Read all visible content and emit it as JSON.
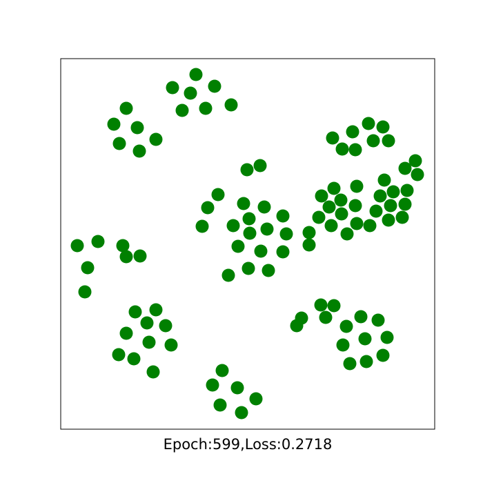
{
  "chart_data": {
    "type": "scatter",
    "xlabel": "Epoch:599,Loss:0.2718",
    "color": "#008000",
    "xlim": [
      0,
      542
    ],
    "ylim": [
      0,
      537
    ],
    "x": [
      196,
      162,
      188,
      223,
      176,
      210,
      247,
      95,
      77,
      111,
      85,
      114,
      138,
      446,
      467,
      423,
      394,
      408,
      427,
      453,
      475,
      514,
      499,
      517,
      469,
      482,
      502,
      463,
      478,
      499,
      457,
      475,
      495,
      429,
      396,
      378,
      406,
      389,
      427,
      374,
      407,
      392,
      429,
      448,
      415,
      360,
      360,
      270,
      289,
      228,
      213,
      205,
      265,
      295,
      273,
      250,
      322,
      274,
      299,
      327,
      257,
      290,
      322,
      272,
      301,
      243,
      24,
      54,
      39,
      35,
      90,
      95,
      115,
      108,
      138,
      125,
      152,
      95,
      128,
      160,
      84,
      106,
      134,
      234,
      220,
      256,
      283,
      231,
      262,
      377,
      396,
      349,
      384,
      342,
      414,
      435,
      460,
      409,
      441,
      473,
      419,
      443,
      467
    ],
    "y": [
      514,
      495,
      487,
      497,
      462,
      465,
      470,
      465,
      442,
      437,
      414,
      403,
      420,
      443,
      438,
      431,
      422,
      406,
      405,
      418,
      418,
      389,
      378,
      369,
      361,
      344,
      346,
      338,
      324,
      326,
      316,
      303,
      307,
      352,
      349,
      338,
      332,
      322,
      324,
      307,
      312,
      295,
      298,
      295,
      283,
      285,
      267,
      376,
      382,
      340,
      321,
      294,
      327,
      322,
      305,
      295,
      309,
      284,
      290,
      283,
      265,
      258,
      257,
      233,
      230,
      223,
      266,
      272,
      234,
      199,
      266,
      250,
      251,
      170,
      173,
      154,
      150,
      139,
      126,
      122,
      108,
      102,
      83,
      85,
      64,
      60,
      44,
      35,
      24,
      180,
      179,
      161,
      162,
      150,
      149,
      163,
      158,
      122,
      131,
      133,
      95,
      98,
      107
    ]
  }
}
